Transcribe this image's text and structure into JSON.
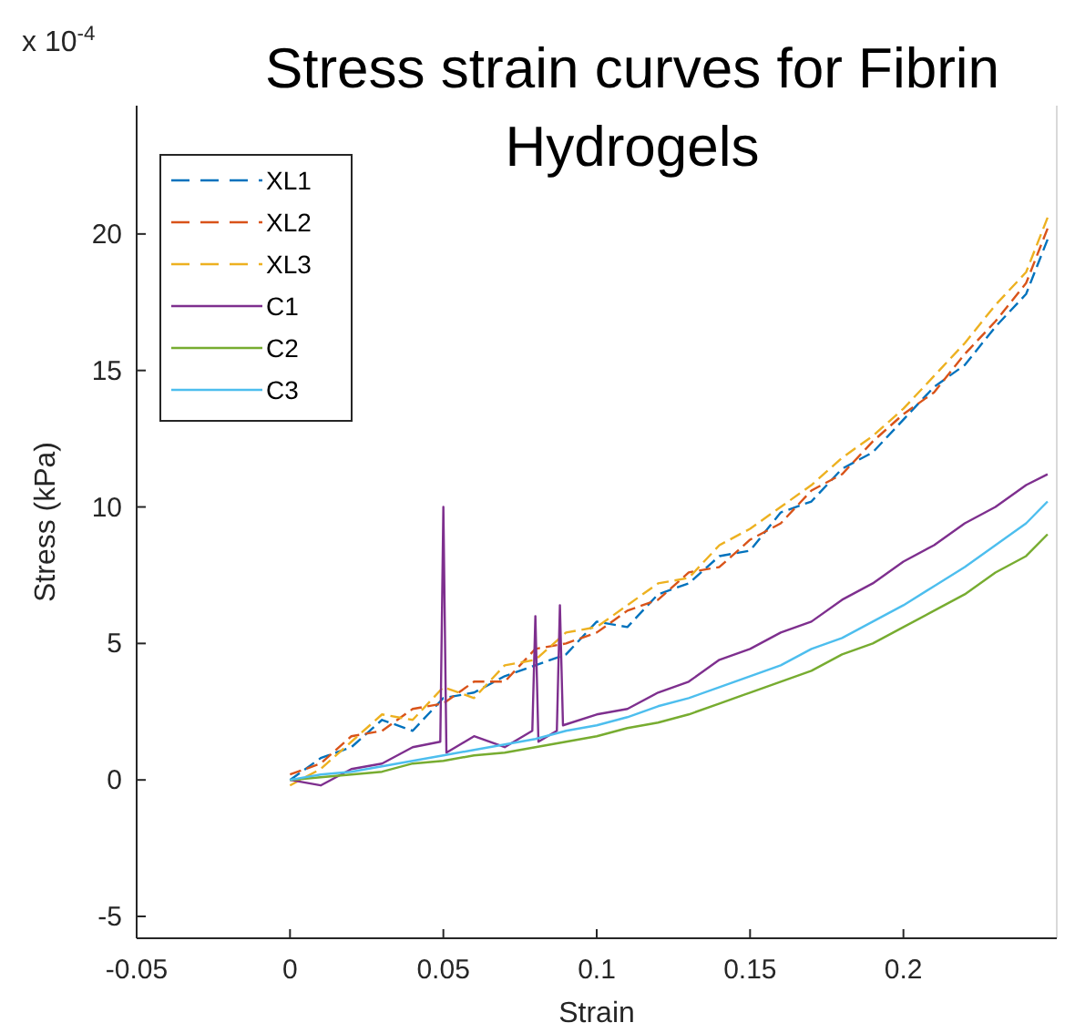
{
  "chart_data": {
    "type": "line",
    "title": "Stress strain curves for Fibrin Hydrogels",
    "xlabel": "Strain",
    "ylabel": "Stress (kPa)",
    "annotations": [
      "x 10$^{-4}$"
    ],
    "x": [
      0,
      0.01,
      0.02,
      0.03,
      0.04,
      0.05,
      0.06,
      0.07,
      0.08,
      0.09,
      0.1,
      0.11,
      0.12,
      0.13,
      0.14,
      0.15,
      0.16,
      0.17,
      0.18,
      0.19,
      0.2,
      0.21,
      0.22,
      0.23,
      0.24,
      0.247
    ],
    "xlim": [
      -0.05,
      0.25
    ],
    "xticks": [
      -0.05,
      0,
      0.05,
      0.1,
      0.15,
      0.2
    ],
    "ylim": [
      -5.8,
      24.7
    ],
    "yticks": [
      -5,
      0,
      5,
      10,
      15,
      20
    ],
    "grid": false,
    "legend": "top left",
    "series": [
      {
        "name": "XL1",
        "color": "#0072bd",
        "line_style": "dashed",
        "values": [
          0,
          0.8,
          1.2,
          2.2,
          1.8,
          3.0,
          3.2,
          3.8,
          4.2,
          4.6,
          5.8,
          5.6,
          6.8,
          7.2,
          8.2,
          8.4,
          9.8,
          10.2,
          11.4,
          12,
          13.2,
          14.4,
          15.2,
          16.6,
          17.8,
          19.8
        ]
      },
      {
        "name": "XL2",
        "color": "#d95319",
        "line_style": "dashed",
        "values": [
          0.2,
          0.6,
          1.6,
          1.8,
          2.6,
          2.8,
          3.6,
          3.6,
          4.8,
          5.0,
          5.4,
          6.2,
          6.6,
          7.6,
          7.8,
          8.8,
          9.4,
          10.6,
          11.2,
          12.4,
          13.4,
          14.2,
          15.6,
          16.8,
          18.2,
          20.2
        ]
      },
      {
        "name": "XL3",
        "color": "#edb120",
        "line_style": "dashed",
        "values": [
          -0.2,
          0.4,
          1.4,
          2.4,
          2.2,
          3.4,
          3.0,
          4.2,
          4.4,
          5.4,
          5.6,
          6.4,
          7.2,
          7.4,
          8.6,
          9.2,
          10.0,
          10.8,
          11.8,
          12.6,
          13.6,
          14.8,
          16.0,
          17.4,
          18.6,
          20.6
        ]
      },
      {
        "name": "C1",
        "color": "#7e2f8e",
        "line_style": "solid",
        "x": [
          0,
          0.01,
          0.02,
          0.03,
          0.04,
          0.049,
          0.05,
          0.051,
          0.06,
          0.07,
          0.079,
          0.08,
          0.081,
          0.087,
          0.088,
          0.089,
          0.1,
          0.11,
          0.12,
          0.13,
          0.14,
          0.15,
          0.16,
          0.17,
          0.18,
          0.19,
          0.2,
          0.21,
          0.22,
          0.23,
          0.24,
          0.247
        ],
        "values": [
          0,
          -0.2,
          0.4,
          0.6,
          1.2,
          1.4,
          10,
          1.0,
          1.6,
          1.2,
          1.8,
          6.0,
          1.4,
          1.8,
          6.4,
          2.0,
          2.4,
          2.6,
          3.2,
          3.6,
          4.4,
          4.8,
          5.4,
          5.8,
          6.6,
          7.2,
          8.0,
          8.6,
          9.4,
          10.0,
          10.8,
          11.2
        ]
      },
      {
        "name": "C2",
        "color": "#77ac30",
        "line_style": "solid",
        "values": [
          0,
          0.1,
          0.2,
          0.3,
          0.6,
          0.7,
          0.9,
          1.0,
          1.2,
          1.4,
          1.6,
          1.9,
          2.1,
          2.4,
          2.8,
          3.2,
          3.6,
          4.0,
          4.6,
          5.0,
          5.6,
          6.2,
          6.8,
          7.6,
          8.2,
          9.0
        ]
      },
      {
        "name": "C3",
        "color": "#4dbeee",
        "line_style": "solid",
        "values": [
          0,
          0.2,
          0.3,
          0.5,
          0.7,
          0.9,
          1.1,
          1.3,
          1.5,
          1.8,
          2.0,
          2.3,
          2.7,
          3.0,
          3.4,
          3.8,
          4.2,
          4.8,
          5.2,
          5.8,
          6.4,
          7.1,
          7.8,
          8.6,
          9.4,
          10.2
        ]
      }
    ]
  }
}
